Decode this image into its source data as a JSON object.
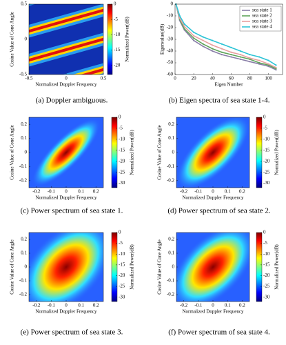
{
  "chart_data": [
    {
      "type": "heatmap",
      "caption": "(a) Doppler ambiguous.",
      "xlabel": "Normalized Doppler Frequency",
      "ylabel": "Cosine Value of Cone Angle",
      "xlim": [
        -0.5,
        0.5
      ],
      "xticks": [
        -0.5,
        0,
        0.5
      ],
      "ylim": [
        -0.5,
        0.5
      ],
      "yticks": [
        -0.5,
        0,
        0.5
      ],
      "colorbar_label": "Normalized Power(dB)",
      "colorbar_lim": [
        -23,
        0
      ],
      "colorbar_ticks": [
        0,
        -5,
        -10,
        -15,
        -20
      ]
    },
    {
      "type": "line",
      "caption": "(b) Eigen spectra of sea state 1-4.",
      "xlabel": "Eigen Number",
      "ylabel": "Eigenvalue(dB)",
      "xlim": [
        0,
        115
      ],
      "xticks": [
        0,
        20,
        40,
        60,
        80,
        100
      ],
      "ylim": [
        -60,
        0
      ],
      "yticks": [
        0,
        -10,
        -20,
        -30,
        -40,
        -50,
        -60
      ],
      "grid": false,
      "legend": "upper right",
      "x": [
        1,
        5,
        10,
        20,
        30,
        40,
        50,
        60,
        70,
        80,
        90,
        100,
        108
      ],
      "series": [
        {
          "name": "sea state 1",
          "color": "#8a7fa8",
          "values": [
            0,
            -14,
            -22,
            -31,
            -36,
            -40,
            -43,
            -45,
            -47,
            -49,
            -51,
            -53,
            -56
          ]
        },
        {
          "name": "sea state 2",
          "color": "#5fa55a",
          "values": [
            0,
            -13,
            -21,
            -29,
            -34,
            -38,
            -41,
            -43,
            -45,
            -47,
            -50,
            -52,
            -55
          ]
        },
        {
          "name": "sea state 3",
          "color": "#e8a0a0",
          "values": [
            0,
            -12,
            -19,
            -27,
            -31,
            -35,
            -38,
            -41,
            -43,
            -46,
            -48,
            -51,
            -54
          ]
        },
        {
          "name": "sea state 4",
          "color": "#2ec4d6",
          "values": [
            0,
            -10,
            -17,
            -24,
            -28,
            -31,
            -34,
            -37,
            -40,
            -43,
            -45,
            -48,
            -52
          ]
        }
      ]
    },
    {
      "type": "heatmap",
      "caption": "(c) Power spectrum of sea state 1.",
      "xlabel": "Normalized Doppler Frequency",
      "ylabel": "Cosine Value of Cone Angle",
      "xlim": [
        -0.25,
        0.25
      ],
      "xticks": [
        -0.2,
        -0.1,
        0,
        0.1,
        0.2
      ],
      "ylim": [
        -0.25,
        0.25
      ],
      "yticks": [
        -0.2,
        -0.1,
        0,
        0.1,
        0.2
      ],
      "colorbar_label": "Normalized Power(dB)",
      "colorbar_lim": [
        -32,
        0
      ],
      "colorbar_ticks": [
        0,
        -5,
        -10,
        -15,
        -20,
        -25,
        -30
      ]
    },
    {
      "type": "heatmap",
      "caption": "(d) Power spectrum of sea state 2.",
      "xlabel": "Normalized Doppler Frequency",
      "ylabel": "Cosine Value of Cone Angle",
      "xlim": [
        -0.25,
        0.25
      ],
      "xticks": [
        -0.2,
        -0.1,
        0,
        0.1,
        0.2
      ],
      "ylim": [
        -0.25,
        0.25
      ],
      "yticks": [
        -0.2,
        -0.1,
        0,
        0.1,
        0.2
      ],
      "colorbar_label": "Normalized Power(dB)",
      "colorbar_lim": [
        -32,
        0
      ],
      "colorbar_ticks": [
        0,
        -5,
        -10,
        -15,
        -20,
        -25,
        -30
      ]
    },
    {
      "type": "heatmap",
      "caption": "(e) Power spectrum of sea state 3.",
      "xlabel": "Normalized Doppler Frequency",
      "ylabel": "Cosine Value of Cone Angle",
      "xlim": [
        -0.25,
        0.25
      ],
      "xticks": [
        -0.2,
        -0.1,
        0,
        0.1,
        0.2
      ],
      "ylim": [
        -0.25,
        0.25
      ],
      "yticks": [
        -0.2,
        -0.1,
        0,
        0.1,
        0.2
      ],
      "colorbar_label": "Normalized Power(dB)",
      "colorbar_lim": [
        -32,
        0
      ],
      "colorbar_ticks": [
        0,
        -5,
        -10,
        -15,
        -20,
        -25,
        -30
      ]
    },
    {
      "type": "heatmap",
      "caption": "(f) Power spectrum of sea state 4.",
      "xlabel": "Normalized Doppler Frequency",
      "ylabel": "Cosine Value of Cone Angle",
      "xlim": [
        -0.25,
        0.25
      ],
      "xticks": [
        -0.2,
        -0.1,
        0,
        0.1,
        0.2
      ],
      "ylim": [
        -0.25,
        0.25
      ],
      "yticks": [
        -0.2,
        -0.1,
        0,
        0.1,
        0.2
      ],
      "colorbar_label": "Normalized Power(dB)",
      "colorbar_lim": [
        -32,
        0
      ],
      "colorbar_ticks": [
        0,
        -5,
        -10,
        -15,
        -20,
        -25,
        -30
      ]
    }
  ]
}
